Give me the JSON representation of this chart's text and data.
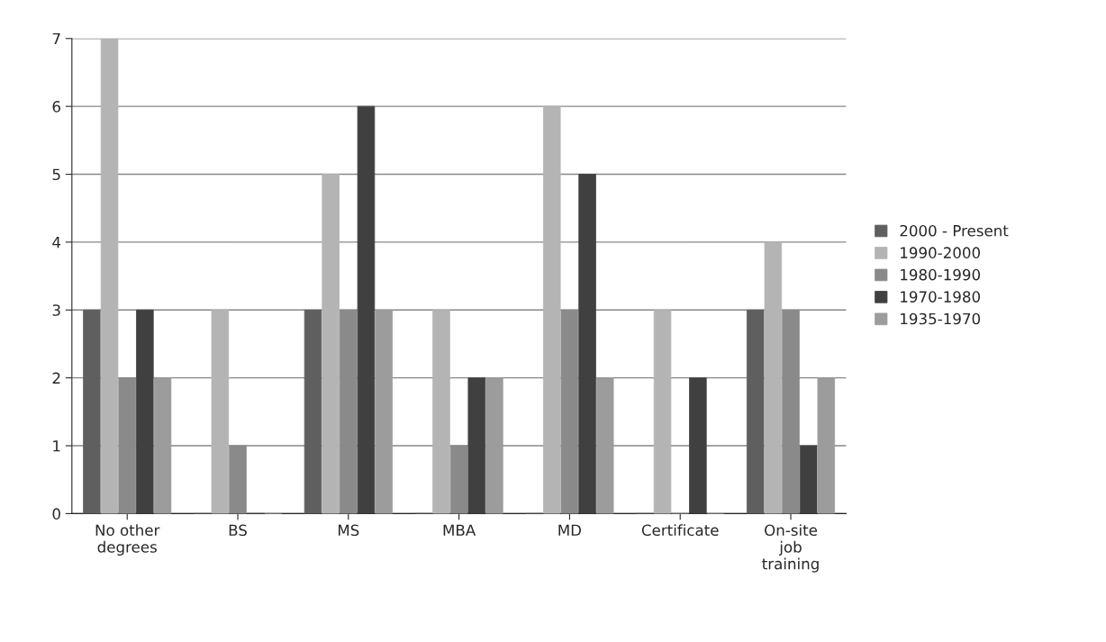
{
  "chart_data": {
    "type": "bar",
    "categories": [
      "No other\ndegrees",
      "BS",
      "MS",
      "MBA",
      "MD",
      "Certificate",
      "On-site\njob\ntraining"
    ],
    "series": [
      {
        "name": "2000 - Present",
        "color": "#5f5f5f",
        "values": [
          3,
          0,
          3,
          0,
          0,
          0,
          3
        ]
      },
      {
        "name": "1990-2000",
        "color": "#b4b4b4",
        "values": [
          7,
          3,
          5,
          3,
          6,
          3,
          4
        ]
      },
      {
        "name": "1980-1990",
        "color": "#8a8a8a",
        "values": [
          2,
          1,
          3,
          1,
          3,
          0,
          3
        ]
      },
      {
        "name": "1970-1980",
        "color": "#404040",
        "values": [
          3,
          0,
          6,
          2,
          5,
          2,
          1
        ]
      },
      {
        "name": "1935-1970",
        "color": "#9c9c9c",
        "values": [
          2,
          0,
          3,
          2,
          2,
          0,
          2
        ]
      }
    ],
    "ylim": [
      0,
      7
    ],
    "yticks": [
      0,
      1,
      2,
      3,
      4,
      5,
      6,
      7
    ],
    "grid": "y",
    "legend": "right"
  }
}
